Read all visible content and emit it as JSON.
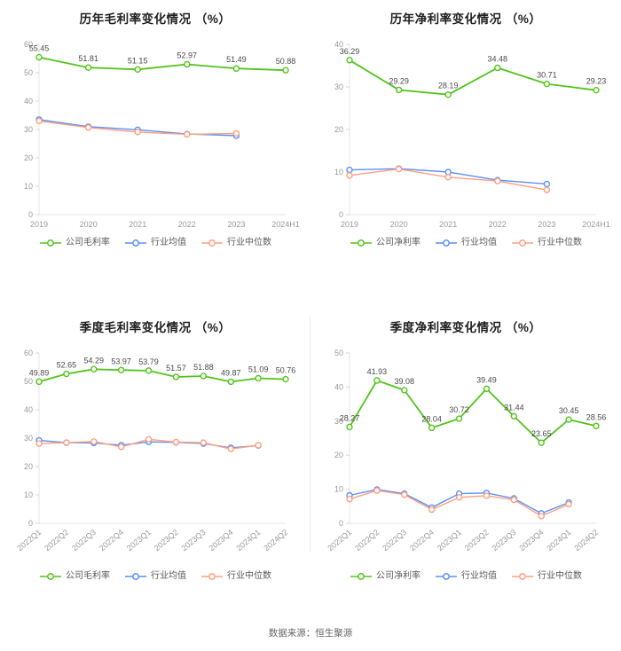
{
  "page": {
    "source": "数据来源：恒生聚源"
  },
  "colors": {
    "company": "#52c41a",
    "industry_avg": "#5B8FF9",
    "industry_median": "#FF9F7F"
  },
  "chart_data": [
    {
      "type": "line",
      "title": "历年毛利率变化情况 （%）",
      "categories": [
        "2019",
        "2020",
        "2021",
        "2022",
        "2023",
        "2024H1"
      ],
      "ylim": [
        0,
        60
      ],
      "yticks": [
        0,
        10,
        20,
        30,
        40,
        50,
        60
      ],
      "rotated_labels": false,
      "legend_position": "bottom",
      "grid": false,
      "series": [
        {
          "name": "公司毛利率",
          "color": "company",
          "labels": true,
          "values": [
            55.45,
            51.81,
            51.15,
            52.97,
            51.49,
            50.88
          ]
        },
        {
          "name": "行业均值",
          "color": "industry_avg",
          "labels": false,
          "values": [
            33.5,
            31.0,
            29.9,
            28.4,
            27.8
          ]
        },
        {
          "name": "行业中位数",
          "color": "industry_median",
          "labels": false,
          "values": [
            33.0,
            30.7,
            29.1,
            28.3,
            28.6
          ]
        }
      ]
    },
    {
      "type": "line",
      "title": "历年净利率变化情况 （%）",
      "categories": [
        "2019",
        "2020",
        "2021",
        "2022",
        "2023",
        "2024H1"
      ],
      "ylim": [
        0,
        40
      ],
      "yticks": [
        0,
        10,
        20,
        30,
        40
      ],
      "rotated_labels": false,
      "legend_position": "bottom",
      "grid": false,
      "series": [
        {
          "name": "公司净利率",
          "color": "company",
          "labels": true,
          "values": [
            36.29,
            29.29,
            28.19,
            34.48,
            30.71,
            29.23
          ]
        },
        {
          "name": "行业均值",
          "color": "industry_avg",
          "labels": false,
          "values": [
            10.5,
            10.8,
            10.0,
            8.1,
            7.2
          ]
        },
        {
          "name": "行业中位数",
          "color": "industry_median",
          "labels": false,
          "values": [
            9.2,
            10.7,
            8.8,
            7.9,
            5.8
          ]
        }
      ]
    },
    {
      "type": "line",
      "title": "季度毛利率变化情况 （%）",
      "categories": [
        "2022Q1",
        "2022Q2",
        "2022Q3",
        "2022Q4",
        "2023Q1",
        "2023Q2",
        "2023Q3",
        "2023Q4",
        "2024Q1",
        "2024Q2"
      ],
      "ylim": [
        0,
        60
      ],
      "yticks": [
        0,
        10,
        20,
        30,
        40,
        50,
        60
      ],
      "rotated_labels": true,
      "legend_position": "bottom",
      "grid": false,
      "series": [
        {
          "name": "公司毛利率",
          "color": "company",
          "labels": true,
          "values": [
            49.89,
            52.65,
            54.29,
            53.97,
            53.79,
            51.57,
            51.88,
            49.87,
            51.09,
            50.76
          ]
        },
        {
          "name": "行业均值",
          "color": "industry_avg",
          "labels": false,
          "values": [
            29.2,
            28.4,
            28.3,
            27.5,
            28.7,
            28.5,
            28.1,
            26.6,
            27.4
          ]
        },
        {
          "name": "行业中位数",
          "color": "industry_median",
          "labels": false,
          "values": [
            28.1,
            28.4,
            28.8,
            26.9,
            29.6,
            28.6,
            28.4,
            26.2,
            27.5
          ]
        }
      ]
    },
    {
      "type": "line",
      "title": "季度净利率变化情况 （%）",
      "categories": [
        "2022Q1",
        "2022Q2",
        "2022Q3",
        "2022Q4",
        "2023Q1",
        "2023Q2",
        "2023Q3",
        "2023Q4",
        "2024Q1",
        "2024Q2"
      ],
      "ylim": [
        0,
        50
      ],
      "yticks": [
        0,
        10,
        20,
        30,
        40,
        50
      ],
      "rotated_labels": true,
      "legend_position": "bottom",
      "grid": false,
      "series": [
        {
          "name": "公司净利率",
          "color": "company",
          "labels": true,
          "values": [
            28.27,
            41.93,
            39.08,
            28.04,
            30.72,
            39.49,
            31.44,
            23.65,
            30.45,
            28.56
          ]
        },
        {
          "name": "行业均值",
          "color": "industry_avg",
          "labels": false,
          "values": [
            8.2,
            9.9,
            8.7,
            4.6,
            8.7,
            8.9,
            7.3,
            2.9,
            6.1
          ]
        },
        {
          "name": "行业中位数",
          "color": "industry_median",
          "labels": false,
          "values": [
            7.1,
            9.6,
            8.4,
            4.0,
            7.6,
            8.1,
            6.9,
            2.1,
            5.6
          ]
        }
      ]
    }
  ]
}
